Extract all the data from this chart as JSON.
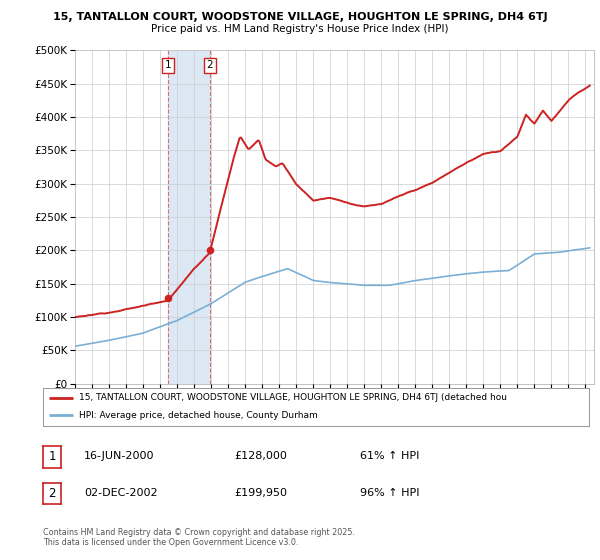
{
  "title1": "15, TANTALLON COURT, WOODSTONE VILLAGE, HOUGHTON LE SPRING, DH4 6TJ",
  "title2": "Price paid vs. HM Land Registry's House Price Index (HPI)",
  "legend_line1": "15, TANTALLON COURT, WOODSTONE VILLAGE, HOUGHTON LE SPRING, DH4 6TJ (detached hou",
  "legend_line2": "HPI: Average price, detached house, County Durham",
  "purchase1_date": "16-JUN-2000",
  "purchase1_price": "£128,000",
  "purchase1_hpi": "61% ↑ HPI",
  "purchase2_date": "02-DEC-2002",
  "purchase2_price": "£199,950",
  "purchase2_hpi": "96% ↑ HPI",
  "copyright": "Contains HM Land Registry data © Crown copyright and database right 2025.\nThis data is licensed under the Open Government Licence v3.0.",
  "purchase1_x": 2000.46,
  "purchase1_y": 128000,
  "purchase2_x": 2002.92,
  "purchase2_y": 199950,
  "hpi_color": "#7bafd4",
  "price_color": "#cc2222",
  "vline_color": "#cc2222",
  "span_color": "#dde8f5",
  "background_color": "#ffffff",
  "grid_color": "#cccccc",
  "ylim": [
    0,
    500000
  ],
  "xlim_start": 1995.0,
  "xlim_end": 2025.5
}
